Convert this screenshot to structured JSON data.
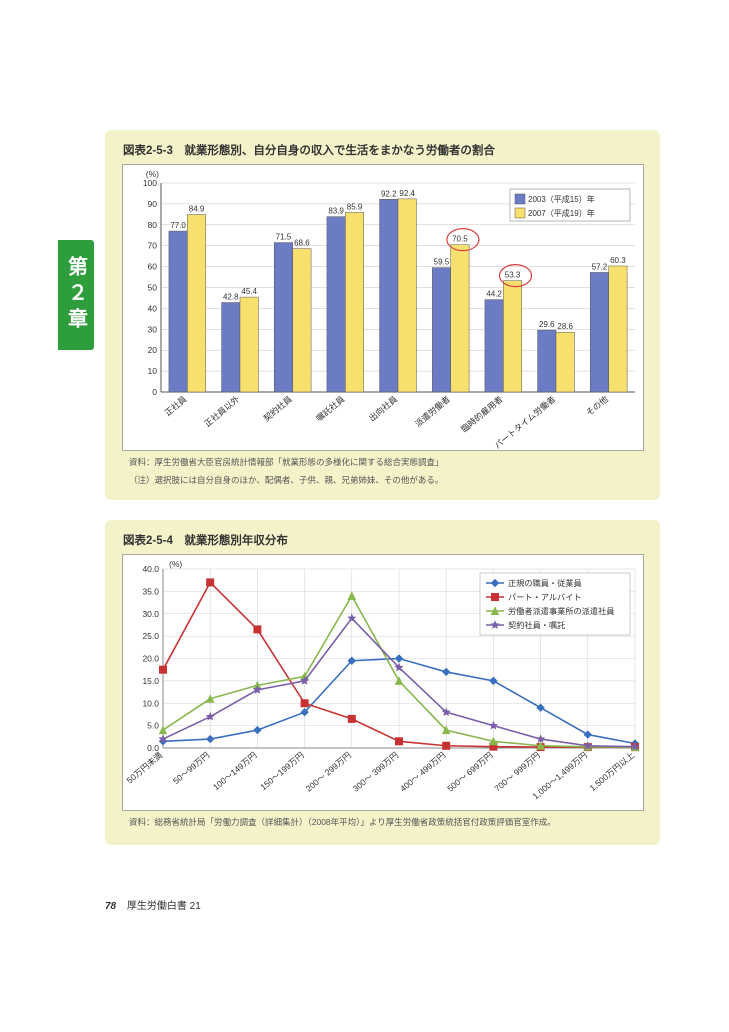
{
  "side_tab": "第２章",
  "chart1": {
    "title": "図表2-5-3　就業形態別、自分自身の収入で生活をまかなう労働者の割合",
    "type": "bar",
    "ylabel": "(%)",
    "ylim": [
      0,
      100
    ],
    "ytick_step": 10,
    "categories": [
      "正社員",
      "正社員以外",
      "契約社員",
      "嘱託社員",
      "出向社員",
      "派遣労働者",
      "臨時的雇用者",
      "パートタイム労働者",
      "その他"
    ],
    "series": [
      {
        "name": "2003（平成15）年",
        "color": "#6b7cc4",
        "values": [
          77.0,
          42.8,
          71.5,
          83.9,
          92.2,
          59.5,
          44.2,
          29.6,
          57.2
        ]
      },
      {
        "name": "2007（平成19）年",
        "color": "#f8e06e",
        "values": [
          84.9,
          45.4,
          68.6,
          85.9,
          92.4,
          70.5,
          53.3,
          28.6,
          60.3
        ]
      }
    ],
    "highlight_indices": [
      5,
      6
    ],
    "highlight_color": "#d84040",
    "grid_color": "#c2c2bb",
    "axis_fontsize": 8.5,
    "label_fontsize": 8,
    "bar_group_width": 0.7,
    "background_color": "#ffffff",
    "source": "資料：厚生労働省大臣官房統計情報部「就業形態の多様化に関する総合実態調査」",
    "note": "（注）選択肢には自分自身のほか、配偶者、子供、親、兄弟姉妹、その他がある。"
  },
  "chart2": {
    "title": "図表2-5-4　就業形態別年収分布",
    "type": "line",
    "ylabel": "(%)",
    "ylim": [
      0,
      40
    ],
    "ytick_step": 5,
    "categories": [
      "50万円未満",
      "50～99万円",
      "100～149万円",
      "150～199万円",
      "200～ 299万円",
      "300～ 399万円",
      "400～ 499万円",
      "500～ 699万円",
      "700～ 999万円",
      "1,000～1,499万円",
      "1,500万円以上"
    ],
    "series": [
      {
        "name": "正規の職員・従業員",
        "color": "#3a6fbf",
        "marker": "diamond",
        "values": [
          1.5,
          2,
          4,
          8,
          19.5,
          20,
          17,
          15,
          9,
          3,
          1
        ]
      },
      {
        "name": "パート・アルバイト",
        "color": "#c83232",
        "marker": "square",
        "values": [
          17.5,
          37,
          26.5,
          10,
          6.5,
          1.5,
          0.5,
          0.3,
          0.2,
          0.2,
          0.2
        ]
      },
      {
        "name": "労働者派遣事業所の派遣社員",
        "color": "#89b84e",
        "marker": "triangle",
        "values": [
          4,
          11,
          14,
          16,
          34,
          15,
          4,
          1.5,
          0.5,
          0.3,
          0.2
        ]
      },
      {
        "name": "契約社員・嘱託",
        "color": "#7a5fa8",
        "marker": "star",
        "values": [
          2,
          7,
          13,
          15,
          29,
          18,
          8,
          5,
          2,
          0.5,
          0.3
        ]
      }
    ],
    "grid_color": "#cfcfd8",
    "axis_fontsize": 8.5,
    "label_fontsize": 8,
    "background_color": "#ffffff",
    "source": "資料：総務省統計局「労働力調査（詳細集計）（2008年平均）」より厚生労働省政策統括官付政策評価官室作成。"
  },
  "footer": {
    "page": "78",
    "doc": "厚生労働白書 21"
  }
}
